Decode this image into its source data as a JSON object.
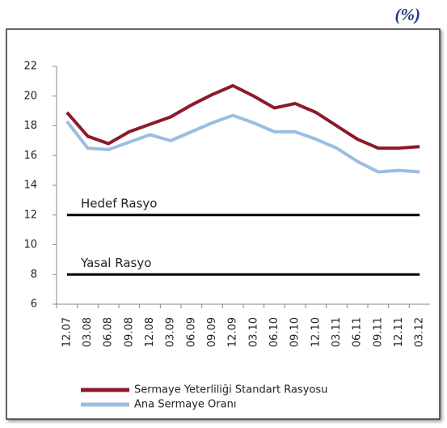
{
  "chart_data": {
    "type": "line",
    "unit": "(%)",
    "categories": [
      "12.07",
      "03.08",
      "06.08",
      "09.08",
      "12.08",
      "03.09",
      "06.09",
      "09.09",
      "12.09",
      "03.10",
      "06.10",
      "09.10",
      "12.10",
      "03.11",
      "06.11",
      "09.11",
      "12.11",
      "03.12"
    ],
    "series": [
      {
        "name": "Sermaye Yeterliliği Standart Rasyosu",
        "color": "#8b1a2b",
        "values": [
          18.9,
          17.3,
          16.8,
          17.6,
          18.1,
          18.6,
          19.4,
          20.1,
          20.7,
          20.0,
          19.2,
          19.5,
          18.9,
          18.0,
          17.1,
          16.5,
          16.5,
          16.6
        ]
      },
      {
        "name": "Ana Sermaye Oranı",
        "color": "#9dbde0",
        "values": [
          18.3,
          16.5,
          16.4,
          16.9,
          17.4,
          17.0,
          17.6,
          18.2,
          18.7,
          18.2,
          17.6,
          17.6,
          17.1,
          16.5,
          15.6,
          14.9,
          15.0,
          14.9
        ]
      }
    ],
    "reference_lines": [
      {
        "label": "Hedef Rasyo",
        "value": 12
      },
      {
        "label": "Yasal Rasyo",
        "value": 8
      }
    ],
    "ylim": [
      6,
      22
    ],
    "yticks": [
      6,
      8,
      10,
      12,
      14,
      16,
      18,
      20,
      22
    ],
    "grid": false
  }
}
